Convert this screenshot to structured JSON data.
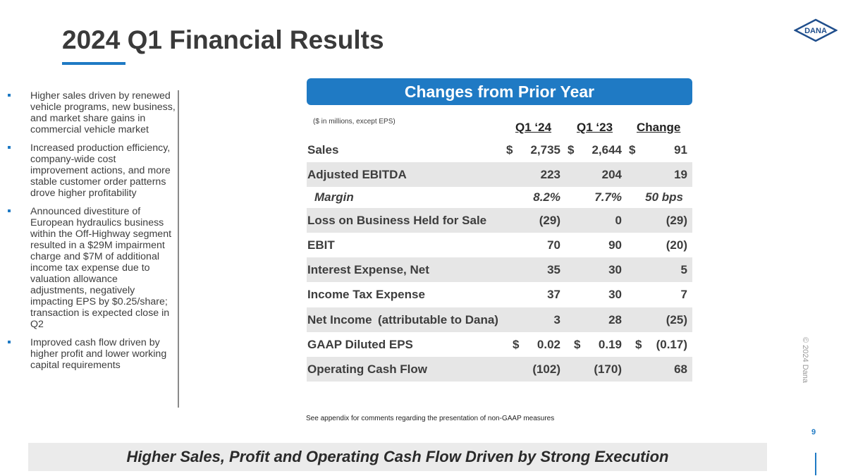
{
  "title": "2024 Q1 Financial Results",
  "logo_text": "DANA",
  "bullets": [
    "Higher sales driven by renewed vehicle programs, new business, and market share gains in commercial vehicle market",
    "Increased production efficiency, company-wide cost improvement actions, and more stable customer order patterns drove higher profitability",
    "Announced divestiture of European hydraulics business within the Off-Highway segment resulted in a $29M impairment charge and $7M of additional income tax expense due to valuation allowance adjustments, negatively impacting EPS by $0.25/share; transaction is expected close in Q2",
    "Improved cash flow driven by higher profit and lower working capital requirements"
  ],
  "banner": "Changes from Prior Year",
  "units_note": "($ in millions, except EPS)",
  "columns": [
    "Q1 ‘24",
    "Q1 ‘23",
    "Change"
  ],
  "rows": [
    {
      "label": "Sales",
      "sub": "",
      "q124": "2,735",
      "q123": "2,644",
      "change": "91",
      "dollar": true
    },
    {
      "label": "Adjusted EBITDA",
      "sub": "",
      "q124": "223",
      "q123": "204",
      "change": "19"
    },
    {
      "label": "Margin",
      "sub": "",
      "q124": "8.2%",
      "q123": "7.7%",
      "change": "50 bps"
    },
    {
      "label": "Loss on Business Held for Sale",
      "sub": "",
      "q124": "(29)",
      "q123": "0",
      "change": "(29)"
    },
    {
      "label": "EBIT",
      "sub": "",
      "q124": "70",
      "q123": "90",
      "change": "(20)"
    },
    {
      "label": "Interest Expense, Net",
      "sub": "",
      "q124": "35",
      "q123": "30",
      "change": "5"
    },
    {
      "label": "Income Tax Expense",
      "sub": "",
      "q124": "37",
      "q123": "30",
      "change": "7"
    },
    {
      "label": "Net Income",
      "sub": "(attributable to Dana)",
      "q124": "3",
      "q123": "28",
      "change": "(25)"
    },
    {
      "label": "GAAP Diluted EPS",
      "sub": "",
      "q124": "0.02",
      "q123": "0.19",
      "change": "(0.17)",
      "dollar": true
    },
    {
      "label": "Operating Cash Flow",
      "sub": "",
      "q124": "(102)",
      "q123": "(170)",
      "change": "68"
    }
  ],
  "dollar_sign": "$",
  "footnote": "See appendix for comments regarding the presentation of non-GAAP measures",
  "copyright": "© 2024 Dana",
  "page_number": "9",
  "tagline": "Higher Sales, Profit and Operating Cash Flow Driven by Strong Execution",
  "colors": {
    "accent": "#1f7ac4",
    "shade": "#e6e6e6",
    "text": "#3d3d3d"
  }
}
